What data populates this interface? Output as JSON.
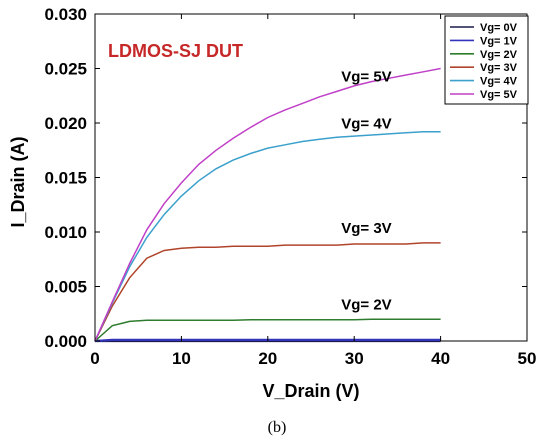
{
  "chart_data": {
    "type": "line",
    "title": "LDMOS-SJ DUT",
    "xlabel": "V_Drain (V)",
    "ylabel": "I_Drain (A)",
    "xlim": [
      0,
      50
    ],
    "ylim": [
      0,
      0.03
    ],
    "xticks": [
      "0",
      "10",
      "20",
      "30",
      "40",
      "50"
    ],
    "yticks": [
      "0.000",
      "0.005",
      "0.010",
      "0.015",
      "0.020",
      "0.025",
      "0.030"
    ],
    "grid": false,
    "legend_position": "top-right",
    "caption": "(b)",
    "x": [
      0,
      2,
      4,
      6,
      8,
      10,
      12,
      14,
      16,
      18,
      20,
      22,
      24,
      26,
      28,
      30,
      32,
      34,
      36,
      38,
      40
    ],
    "series": [
      {
        "name": "Vg= 0V",
        "color": "#1a1a4a",
        "values": [
          0,
          0,
          0,
          0,
          0,
          0,
          0,
          0,
          0,
          0,
          0,
          0,
          0,
          0,
          0,
          0,
          0,
          0,
          0,
          0,
          0
        ]
      },
      {
        "name": "Vg= 1V",
        "color": "#3333bb",
        "values": [
          0,
          0.0001,
          0.0001,
          0.0001,
          0.0001,
          0.0001,
          0.0001,
          0.0001,
          0.0001,
          0.0001,
          0.0001,
          0.0001,
          0.0001,
          0.0001,
          0.0001,
          0.0001,
          0.0001,
          0.0001,
          0.0001,
          0.0001,
          0.0001
        ]
      },
      {
        "name": "Vg= 2V",
        "color": "#2e7d2e",
        "values": [
          0,
          0.0014,
          0.0018,
          0.0019,
          0.0019,
          0.0019,
          0.0019,
          0.0019,
          0.0019,
          0.00195,
          0.00195,
          0.00195,
          0.00195,
          0.00195,
          0.00195,
          0.00195,
          0.002,
          0.002,
          0.002,
          0.002,
          0.002
        ]
      },
      {
        "name": "Vg= 3V",
        "color": "#b0442a",
        "values": [
          0,
          0.0032,
          0.0058,
          0.0076,
          0.0083,
          0.0085,
          0.0086,
          0.0086,
          0.0087,
          0.0087,
          0.0087,
          0.0088,
          0.0088,
          0.0088,
          0.0088,
          0.0089,
          0.0089,
          0.0089,
          0.0089,
          0.009,
          0.009
        ]
      },
      {
        "name": "Vg= 4V",
        "color": "#3ba0cc",
        "values": [
          0,
          0.0035,
          0.0068,
          0.0095,
          0.0116,
          0.0133,
          0.0147,
          0.0158,
          0.0166,
          0.0172,
          0.0177,
          0.018,
          0.0183,
          0.0185,
          0.0187,
          0.0188,
          0.0189,
          0.019,
          0.0191,
          0.0192,
          0.0192
        ]
      },
      {
        "name": "Vg= 5V",
        "color": "#c040c8",
        "values": [
          0,
          0.0036,
          0.0071,
          0.0102,
          0.0126,
          0.0145,
          0.0162,
          0.0175,
          0.0186,
          0.0196,
          0.0205,
          0.0212,
          0.0218,
          0.0224,
          0.0229,
          0.0234,
          0.0238,
          0.0241,
          0.0244,
          0.0247,
          0.025
        ]
      }
    ],
    "annotations": [
      {
        "text": "Vg= 5V",
        "x": 28.5,
        "y": 0.0238
      },
      {
        "text": "Vg= 4V",
        "x": 28.5,
        "y": 0.0195
      },
      {
        "text": "Vg= 3V",
        "x": 28.5,
        "y": 0.0099
      },
      {
        "text": "Vg= 2V",
        "x": 28.5,
        "y": 0.0029
      }
    ],
    "title_color": "#c62828"
  }
}
